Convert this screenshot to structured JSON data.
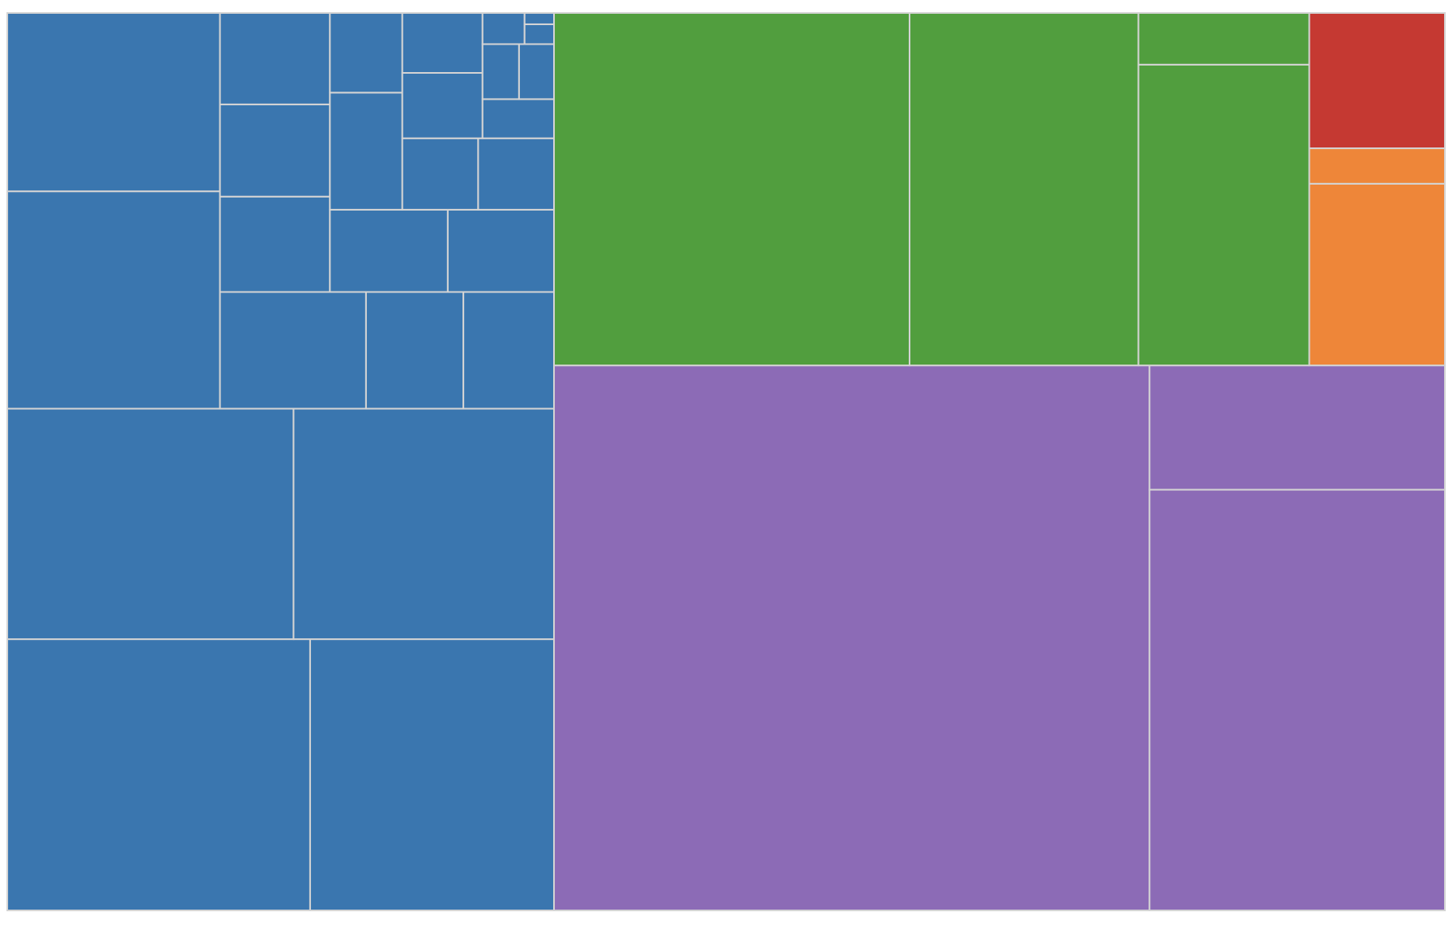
{
  "chart_data": {
    "type": "treemap",
    "border_color": "#d4d4d4",
    "groups": [
      {
        "color": "#3a76af",
        "values": [
          94.0,
          75.7,
          75.5,
          68.7,
          52.9,
          43.4,
          19.5,
          13.0,
          12.1,
          12.0,
          11.6,
          11.5,
          11.1,
          10.0,
          9.7,
          6.6,
          6.2,
          6.2,
          6.0,
          5.5,
          3.2,
          2.3,
          2.2,
          1.5,
          0.67,
          0.38
        ]
      },
      {
        "color": "#8c6bb6",
        "values": [
          371.4,
          142.2,
          42.0
        ]
      },
      {
        "color": "#519e3e",
        "values": [
          143.4,
          92.3,
          58.8,
          10.1
        ]
      },
      {
        "color": "#ee8639",
        "values": [
          28.2,
          5.5
        ]
      },
      {
        "color": "#c53932",
        "values": [
          21.0
        ]
      }
    ]
  }
}
